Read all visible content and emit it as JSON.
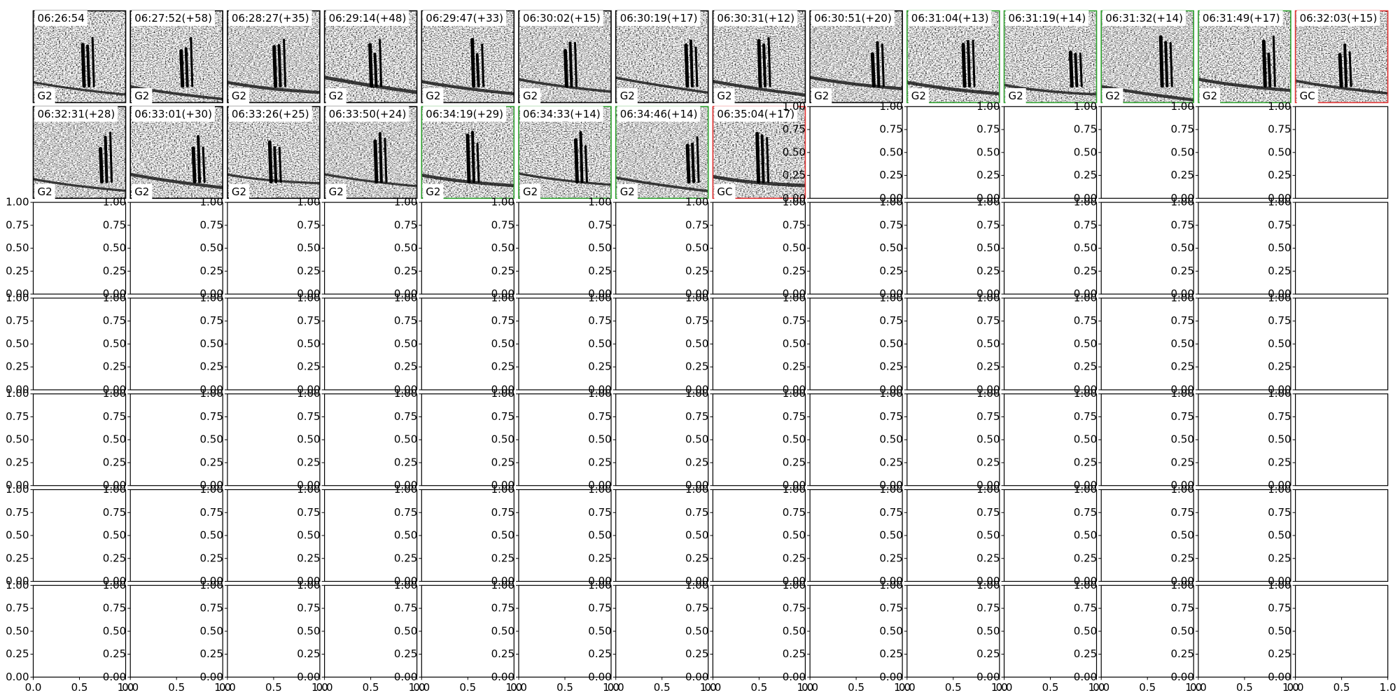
{
  "panels": [
    {
      "time": "06:26:54",
      "label": "G2",
      "border_color": "#000000"
    },
    {
      "time": "06:27:52(+58)",
      "label": "G2",
      "border_color": "#000000"
    },
    {
      "time": "06:28:27(+35)",
      "label": "G2",
      "border_color": "#000000"
    },
    {
      "time": "06:29:14(+48)",
      "label": "G2",
      "border_color": "#000000"
    },
    {
      "time": "06:29:47(+33)",
      "label": "G2",
      "border_color": "#000000"
    },
    {
      "time": "06:30:02(+15)",
      "label": "G2",
      "border_color": "#000000"
    },
    {
      "time": "06:30:19(+17)",
      "label": "G2",
      "border_color": "#000000"
    },
    {
      "time": "06:30:31(+12)",
      "label": "G2",
      "border_color": "#000000"
    },
    {
      "time": "06:30:51(+20)",
      "label": "G2",
      "border_color": "#000000"
    },
    {
      "time": "06:31:04(+13)",
      "label": "G2",
      "border_color": "#2ca02c"
    },
    {
      "time": "06:31:19(+14)",
      "label": "G2",
      "border_color": "#2ca02c"
    },
    {
      "time": "06:31:32(+14)",
      "label": "G2",
      "border_color": "#2ca02c"
    },
    {
      "time": "06:31:49(+17)",
      "label": "G2",
      "border_color": "#2ca02c"
    },
    {
      "time": "06:32:03(+15)",
      "label": "GC",
      "border_color": "#e03030"
    },
    {
      "time": "06:32:31(+28)",
      "label": "G2",
      "border_color": "#000000"
    },
    {
      "time": "06:33:01(+30)",
      "label": "G2",
      "border_color": "#000000"
    },
    {
      "time": "06:33:26(+25)",
      "label": "G2",
      "border_color": "#000000"
    },
    {
      "time": "06:33:50(+24)",
      "label": "G2",
      "border_color": "#000000"
    },
    {
      "time": "06:34:19(+29)",
      "label": "G2",
      "border_color": "#2ca02c"
    },
    {
      "time": "06:34:33(+14)",
      "label": "G2",
      "border_color": "#2ca02c"
    },
    {
      "time": "06:34:46(+14)",
      "label": "G2",
      "border_color": "#2ca02c"
    },
    {
      "time": "06:35:04(+17)",
      "label": "GC",
      "border_color": "#e03030"
    }
  ],
  "empty_axes": {
    "yticks": [
      {
        "value": 0,
        "label": "0.00"
      },
      {
        "value": 0.25,
        "label": "0.25"
      },
      {
        "value": 0.5,
        "label": "0.50"
      },
      {
        "value": 0.75,
        "label": "0.75"
      },
      {
        "value": 1,
        "label": "1.00"
      }
    ],
    "xticks": [
      {
        "value": 0,
        "label": "0.0"
      },
      {
        "value": 0.5,
        "label": "0.5"
      },
      {
        "value": 1,
        "label": "1.0"
      }
    ]
  }
}
